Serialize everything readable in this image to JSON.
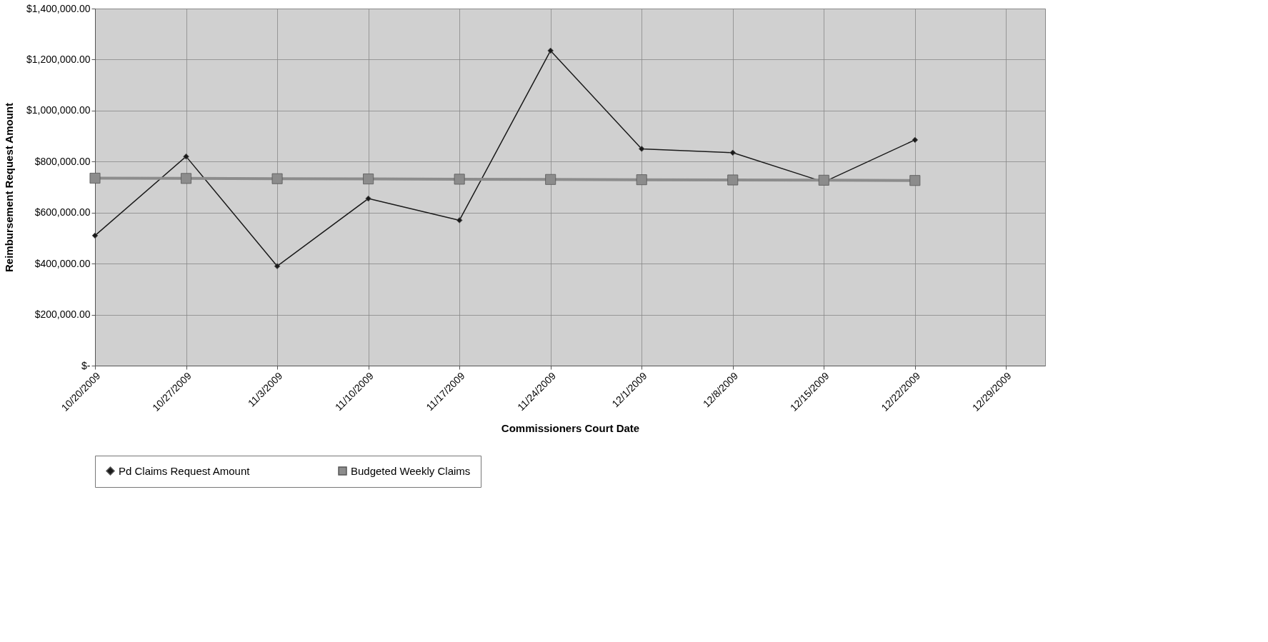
{
  "chart_data": {
    "type": "line",
    "xlabel": "Commissioners Court Date",
    "ylabel": "Reimbursement Request Amount",
    "x": [
      "2009-10-20",
      "2009-10-27",
      "2009-11-03",
      "2009-11-10",
      "2009-11-17",
      "2009-11-24",
      "2009-12-01",
      "2009-12-08",
      "2009-12-15",
      "2009-12-22"
    ],
    "series": [
      {
        "name": "Pd Claims Request Amount",
        "color": "#1a1a1a",
        "marker": "diamond",
        "values": [
          510000,
          820000,
          390000,
          655000,
          570000,
          1235000,
          850000,
          835000,
          720000,
          885000
        ]
      },
      {
        "name": "Budgeted Weekly Claims",
        "color": "#8c8c8c",
        "marker": "square",
        "values": [
          735000,
          734000,
          733000,
          732000,
          731000,
          730000,
          729000,
          728000,
          727000,
          726000
        ]
      }
    ],
    "xlim": [
      "2009-10-20",
      "2010-01-01"
    ],
    "xticks": [
      {
        "value": "2009-10-20",
        "label": "10/20/2009"
      },
      {
        "value": "2009-10-27",
        "label": "10/27/2009"
      },
      {
        "value": "2009-11-03",
        "label": "11/3/2009"
      },
      {
        "value": "2009-11-10",
        "label": "11/10/2009"
      },
      {
        "value": "2009-11-17",
        "label": "11/17/2009"
      },
      {
        "value": "2009-11-24",
        "label": "11/24/2009"
      },
      {
        "value": "2009-12-01",
        "label": "12/1/2009"
      },
      {
        "value": "2009-12-08",
        "label": "12/8/2009"
      },
      {
        "value": "2009-12-15",
        "label": "12/15/2009"
      },
      {
        "value": "2009-12-22",
        "label": "12/22/2009"
      },
      {
        "value": "2009-12-29",
        "label": "12/29/2009"
      }
    ],
    "ylim": [
      0,
      1400000
    ],
    "yticks": [
      {
        "value": 0,
        "label": "$-"
      },
      {
        "value": 200000,
        "label": "$200,000.00"
      },
      {
        "value": 400000,
        "label": "$400,000.00"
      },
      {
        "value": 600000,
        "label": "$600,000.00"
      },
      {
        "value": 800000,
        "label": "$800,000.00"
      },
      {
        "value": 1000000,
        "label": "$1,000,000.00"
      },
      {
        "value": 1200000,
        "label": "$1,200,000.00"
      },
      {
        "value": 1400000,
        "label": "$1,400,000.00"
      }
    ],
    "grid": true,
    "legend": "bottom",
    "line_style": "solid"
  }
}
